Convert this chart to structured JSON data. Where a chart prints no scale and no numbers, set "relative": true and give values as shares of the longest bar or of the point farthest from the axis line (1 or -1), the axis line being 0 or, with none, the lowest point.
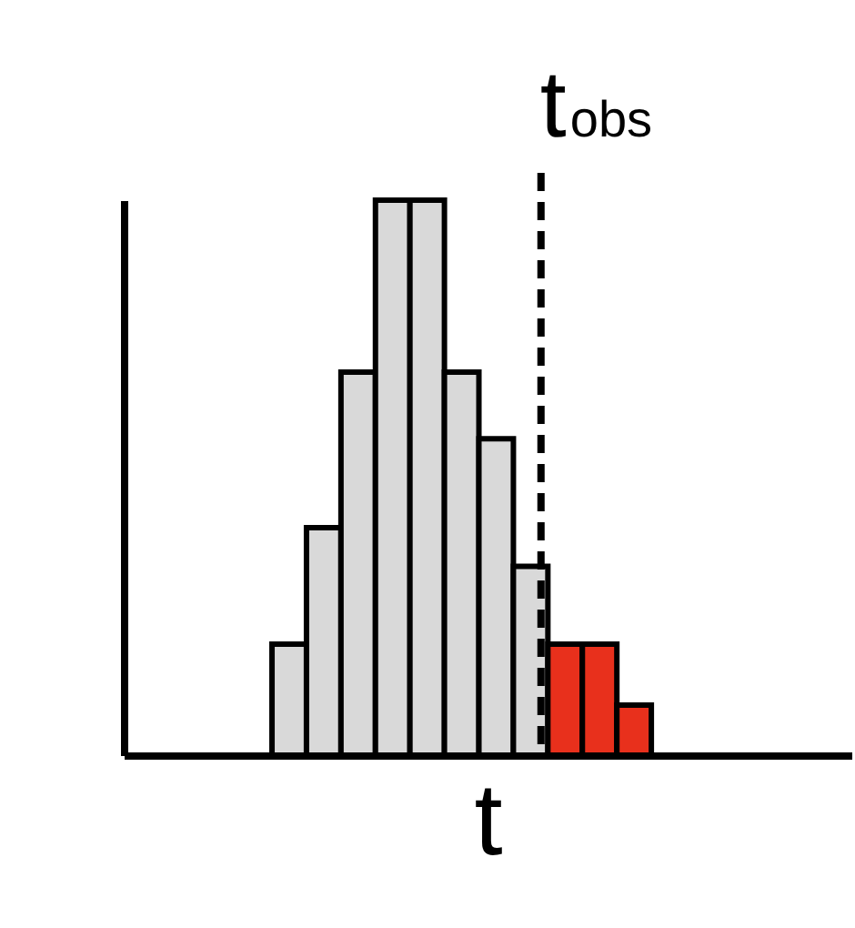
{
  "chart_data": {
    "type": "bar",
    "relative": true,
    "xlabel": "t",
    "categories": [
      null,
      null,
      null,
      null,
      null,
      null,
      null,
      null,
      null,
      null,
      null
    ],
    "values": [
      0.2,
      0.41,
      0.69,
      1,
      1,
      0.69,
      0.57,
      0.34,
      0.2,
      0.2,
      0.09
    ],
    "colors": [
      "#d9d9d9",
      "#d9d9d9",
      "#d9d9d9",
      "#d9d9d9",
      "#d9d9d9",
      "#d9d9d9",
      "#d9d9d9",
      "#d9d9d9",
      "#e8301c",
      "#e8301c",
      "#e8301c"
    ],
    "annotations": [
      "t$_{obs}$"
    ],
    "grid": false
  }
}
